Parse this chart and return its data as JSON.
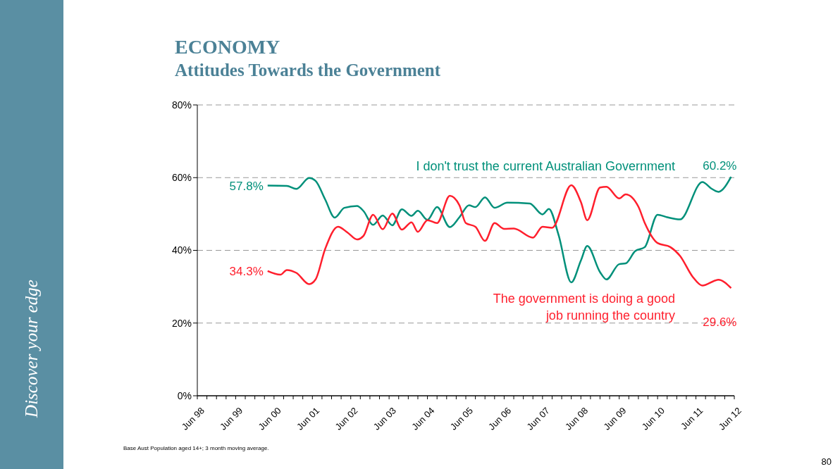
{
  "chart_data": {
    "type": "line",
    "title": "ECONOMY",
    "subtitle": "Attitudes Towards the Government",
    "annotations": [
      "Discover your edge",
      "Base Aust Population aged 14+; 3 month moving average.",
      "80"
    ],
    "xlim": [
      "1998-06",
      "2012-06"
    ],
    "xticks": [
      {
        "value": "1998-06",
        "label": "Jun 98"
      },
      {
        "value": "1998-09",
        "label": null
      },
      {
        "value": "1998-12",
        "label": null
      },
      {
        "value": "1999-03",
        "label": null
      },
      {
        "value": "1999-06",
        "label": "Jun 99"
      },
      {
        "value": "1999-09",
        "label": null
      },
      {
        "value": "1999-12",
        "label": null
      },
      {
        "value": "2000-03",
        "label": null
      },
      {
        "value": "2000-06",
        "label": "Jun 00"
      },
      {
        "value": "2000-09",
        "label": null
      },
      {
        "value": "2000-12",
        "label": null
      },
      {
        "value": "2001-03",
        "label": null
      },
      {
        "value": "2001-06",
        "label": "Jun 01"
      },
      {
        "value": "2001-09",
        "label": null
      },
      {
        "value": "2001-12",
        "label": null
      },
      {
        "value": "2002-03",
        "label": null
      },
      {
        "value": "2002-06",
        "label": "Jun 02"
      },
      {
        "value": "2002-09",
        "label": null
      },
      {
        "value": "2002-12",
        "label": null
      },
      {
        "value": "2003-03",
        "label": null
      },
      {
        "value": "2003-06",
        "label": "Jun 03"
      },
      {
        "value": "2003-09",
        "label": null
      },
      {
        "value": "2003-12",
        "label": null
      },
      {
        "value": "2004-03",
        "label": null
      },
      {
        "value": "2004-06",
        "label": "Jun 04"
      },
      {
        "value": "2004-09",
        "label": null
      },
      {
        "value": "2004-12",
        "label": null
      },
      {
        "value": "2005-03",
        "label": null
      },
      {
        "value": "2005-06",
        "label": "Jun 05"
      },
      {
        "value": "2005-09",
        "label": null
      },
      {
        "value": "2005-12",
        "label": null
      },
      {
        "value": "2006-03",
        "label": null
      },
      {
        "value": "2006-06",
        "label": "Jun 06"
      },
      {
        "value": "2006-09",
        "label": null
      },
      {
        "value": "2006-12",
        "label": null
      },
      {
        "value": "2007-03",
        "label": null
      },
      {
        "value": "2007-06",
        "label": "Jun 07"
      },
      {
        "value": "2007-09",
        "label": null
      },
      {
        "value": "2007-12",
        "label": null
      },
      {
        "value": "2008-03",
        "label": null
      },
      {
        "value": "2008-06",
        "label": "Jun 08"
      },
      {
        "value": "2008-09",
        "label": null
      },
      {
        "value": "2008-12",
        "label": null
      },
      {
        "value": "2009-03",
        "label": null
      },
      {
        "value": "2009-06",
        "label": "Jun 09"
      },
      {
        "value": "2009-09",
        "label": null
      },
      {
        "value": "2009-12",
        "label": null
      },
      {
        "value": "2010-03",
        "label": null
      },
      {
        "value": "2010-06",
        "label": "Jun 10"
      },
      {
        "value": "2010-09",
        "label": null
      },
      {
        "value": "2010-12",
        "label": null
      },
      {
        "value": "2011-03",
        "label": null
      },
      {
        "value": "2011-06",
        "label": "Jun 11"
      },
      {
        "value": "2011-09",
        "label": null
      },
      {
        "value": "2011-12",
        "label": null
      },
      {
        "value": "2012-03",
        "label": null
      },
      {
        "value": "2012-06",
        "label": "Jun 12"
      }
    ],
    "ylim": [
      0,
      80
    ],
    "yticks": [
      {
        "value": 0,
        "label": "0%"
      },
      {
        "value": 20,
        "label": "20%"
      },
      {
        "value": 40,
        "label": "40%"
      },
      {
        "value": 60,
        "label": "60%"
      },
      {
        "value": 80,
        "label": "80%"
      }
    ],
    "grid": "y",
    "line_style": "solid",
    "marker": "none",
    "series": [
      {
        "name": "I don't trust the current Australian Government",
        "color": "#00907a",
        "x": [
          "2000-04",
          "2000-10",
          "2001-01",
          "2001-05",
          "2001-07",
          "2001-10",
          "2002-01",
          "2002-04",
          "2002-08",
          "2002-10",
          "2003-01",
          "2003-04",
          "2003-07",
          "2003-10",
          "2004-01",
          "2004-03",
          "2004-06",
          "2004-09",
          "2005-01",
          "2005-04",
          "2005-07",
          "2005-09",
          "2005-12",
          "2006-03",
          "2006-07",
          "2007-02",
          "2007-06",
          "2007-08",
          "2007-11",
          "2008-03",
          "2008-06",
          "2008-08",
          "2008-12",
          "2009-02",
          "2009-06",
          "2009-08",
          "2009-11",
          "2010-02",
          "2010-06",
          "2010-09",
          "2011-01",
          "2011-08",
          "2011-11",
          "2012-01",
          "2012-05"
        ],
        "values": [
          57.8,
          57.7,
          56.9,
          59.9,
          59.1,
          54.0,
          49.0,
          51.7,
          52.2,
          50.8,
          47.0,
          49.6,
          46.9,
          51.3,
          49.5,
          50.9,
          48.4,
          51.9,
          46.4,
          49.1,
          52.4,
          51.9,
          54.6,
          51.7,
          53.1,
          52.9,
          49.9,
          51.4,
          44.3,
          31.2,
          37.2,
          41.2,
          34.0,
          32.0,
          36.2,
          36.4,
          39.8,
          40.9,
          49.8,
          49.1,
          48.5,
          58.8,
          56.9,
          56.1,
          60.2
        ],
        "value_labels": [
          "57.8%",
          null,
          null,
          null,
          null,
          null,
          null,
          null,
          null,
          null,
          null,
          null,
          null,
          null,
          null,
          null,
          null,
          null,
          null,
          null,
          null,
          null,
          null,
          null,
          null,
          null,
          null,
          null,
          null,
          null,
          null,
          null,
          null,
          null,
          null,
          null,
          null,
          null,
          null,
          null,
          null,
          null,
          null,
          null,
          "60.2%"
        ]
      },
      {
        "name": "The government is doing a good job running the country",
        "color": "#ff1f2d",
        "x": [
          "2000-04",
          "2000-08",
          "2000-10",
          "2001-01",
          "2001-05",
          "2001-07",
          "2001-10",
          "2002-02",
          "2002-05",
          "2002-08",
          "2002-10",
          "2003-01",
          "2003-04",
          "2003-07",
          "2003-10",
          "2004-01",
          "2004-03",
          "2004-06",
          "2004-09",
          "2005-01",
          "2005-04",
          "2005-06",
          "2005-09",
          "2005-12",
          "2006-03",
          "2006-06",
          "2006-09",
          "2007-03",
          "2007-06",
          "2007-09",
          "2008-03",
          "2008-06",
          "2008-08",
          "2008-12",
          "2009-02",
          "2009-06",
          "2009-08",
          "2009-12",
          "2010-02",
          "2010-06",
          "2010-10",
          "2011-01",
          "2011-05",
          "2011-08",
          "2012-01",
          "2012-05"
        ],
        "values": [
          34.3,
          33.3,
          34.6,
          33.8,
          30.7,
          32.0,
          40.4,
          46.5,
          44.9,
          43.0,
          44.0,
          49.8,
          45.8,
          50.1,
          45.7,
          47.7,
          45.1,
          48.3,
          47.5,
          55.0,
          52.4,
          47.5,
          46.5,
          42.6,
          47.5,
          45.9,
          46.0,
          43.5,
          46.5,
          46.2,
          57.9,
          53.3,
          48.3,
          57.3,
          57.5,
          54.3,
          55.4,
          52.0,
          47.5,
          42.0,
          40.9,
          38.5,
          32.7,
          30.3,
          31.9,
          29.6
        ],
        "value_labels": [
          "34.3%",
          null,
          null,
          null,
          null,
          null,
          null,
          null,
          null,
          null,
          null,
          null,
          null,
          null,
          null,
          null,
          null,
          null,
          null,
          null,
          null,
          null,
          null,
          null,
          null,
          null,
          null,
          null,
          null,
          null,
          null,
          null,
          null,
          null,
          null,
          null,
          null,
          null,
          null,
          null,
          null,
          null,
          null,
          null,
          null,
          "29.6%"
        ]
      }
    ]
  }
}
